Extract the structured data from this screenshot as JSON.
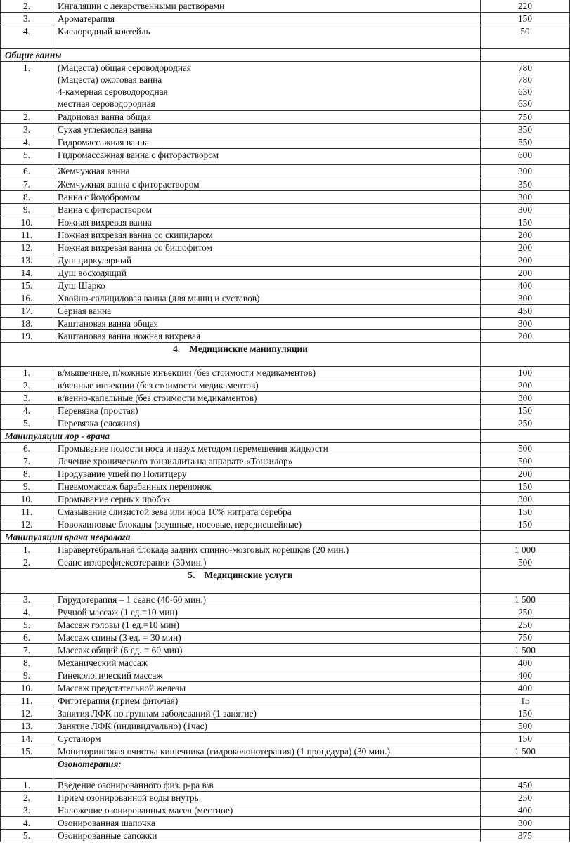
{
  "rows": [
    {
      "type": "item",
      "num": "2.",
      "name": "Ингаляции с лекарственными растворами",
      "price": "220",
      "h": 18
    },
    {
      "type": "item",
      "num": "3.",
      "name": "Ароматерапия",
      "price": "150",
      "h": 18
    },
    {
      "type": "item",
      "num": "4.",
      "name": "Кислородный коктейль",
      "price": "50",
      "h": 34
    },
    {
      "type": "sub",
      "title": "Общие ванны",
      "h": 18
    },
    {
      "type": "multi",
      "num": "1.",
      "lines": [
        {
          "name": "(Мацеста) общая сероводородная",
          "price": "780"
        },
        {
          "name": "(Мацеста) ожоговая ванна",
          "price": "780"
        },
        {
          "name": "4-камерная сероводородная",
          "price": "630"
        },
        {
          "name": "местная сероводородная",
          "price": "630"
        }
      ],
      "h": 70
    },
    {
      "type": "item",
      "num": "2.",
      "name": "Радоновая ванна общая",
      "price": "750",
      "h": 18
    },
    {
      "type": "item",
      "num": "3.",
      "name": "Сухая углекислая ванна",
      "price": "350",
      "h": 18
    },
    {
      "type": "item",
      "num": "4.",
      "name": "Гидромассажная ванна",
      "price": "550",
      "h": 18
    },
    {
      "type": "item",
      "num": "5.",
      "name": "Гидромассажная ванна с фитораствором",
      "price": "600",
      "h": 23
    },
    {
      "type": "item",
      "num": "6.",
      "name": "Жемчужная ванна",
      "price": "300",
      "h": 19
    },
    {
      "type": "item",
      "num": "7.",
      "name": "Жемчужная ванна с фитораствором",
      "price": "350",
      "h": 18
    },
    {
      "type": "item",
      "num": "8.",
      "name": "Ванна с йодобромом",
      "price": "300",
      "h": 18
    },
    {
      "type": "item",
      "num": "9.",
      "name": "Ванна с фитораствором",
      "price": "300",
      "h": 18
    },
    {
      "type": "item",
      "num": "10.",
      "name": "Ножная вихревая ванна",
      "price": "150",
      "h": 18
    },
    {
      "type": "item",
      "num": "11.",
      "name": "Ножная вихревая ванна со скипидаром",
      "price": "200",
      "h": 18
    },
    {
      "type": "item",
      "num": "12.",
      "name": "Ножная вихревая ванна со бишофитом",
      "price": "200",
      "h": 18
    },
    {
      "type": "item",
      "num": "13.",
      "name": "Душ циркулярный",
      "price": "200",
      "h": 18
    },
    {
      "type": "item",
      "num": "14.",
      "name": "Душ восходящий",
      "price": "200",
      "h": 18
    },
    {
      "type": "item",
      "num": "15.",
      "name": "Душ Шарко",
      "price": "400",
      "h": 18
    },
    {
      "type": "item",
      "num": "16.",
      "name": "Хвойно-салициловая ванна (для мышц и суставов)",
      "price": "300",
      "h": 18
    },
    {
      "type": "item",
      "num": "17.",
      "name": "Серная ванна",
      "price": "450",
      "h": 18
    },
    {
      "type": "item",
      "num": "18.",
      "name": "Каштановая ванна общая",
      "price": "300",
      "h": 18
    },
    {
      "type": "item",
      "num": "19.",
      "name": "Каштановая ванна ножная вихревая",
      "price": "200",
      "h": 18
    },
    {
      "type": "sec",
      "title": "4.    Медицинские манипуляции",
      "h": 34
    },
    {
      "type": "item",
      "num": "1.",
      "name": "в/мышечные, п/кожные инъекции (без стоимости медикаментов)",
      "price": "100",
      "h": 18
    },
    {
      "type": "item",
      "num": "2.",
      "name": "в/венные инъекции (без стоимости медикаментов)",
      "price": "200",
      "h": 18
    },
    {
      "type": "item",
      "num": "3.",
      "name": "в/венно-капельные (без стоимости медикаментов)",
      "price": "300",
      "h": 18
    },
    {
      "type": "item",
      "num": "4.",
      "name": "Перевязка (простая)",
      "price": "150",
      "h": 18
    },
    {
      "type": "item",
      "num": "5.",
      "name": "Перевязка (сложная)",
      "price": "250",
      "h": 18
    },
    {
      "type": "sub",
      "title": "Манипуляции лор - врача",
      "h": 18
    },
    {
      "type": "item",
      "num": "6.",
      "name": "Промывание полости носа и пазух методом перемещения жидкости",
      "price": "500",
      "h": 18
    },
    {
      "type": "item",
      "num": "7.",
      "name": "Лечение хронического тонзиллита на аппарате «Тонзилор»",
      "price": "500",
      "h": 18
    },
    {
      "type": "item",
      "num": "8.",
      "name": "Продувание ушей по Политцеру",
      "price": "200",
      "h": 18
    },
    {
      "type": "item",
      "num": "9.",
      "name": "Пневмомассаж барабанных перепонок",
      "price": "150",
      "h": 18
    },
    {
      "type": "item",
      "num": "10.",
      "name": "Промывание серных пробок",
      "price": "300",
      "h": 18
    },
    {
      "type": "item",
      "num": "11.",
      "name": "Смазывание слизистой зева или носа 10% нитрата серебра",
      "price": "150",
      "h": 18
    },
    {
      "type": "item",
      "num": "12.",
      "name": "Новокаиновые блокады (заушные, носовые, переднешейные)",
      "price": "150",
      "h": 18
    },
    {
      "type": "sub",
      "title": "Манипуляции врача невролога",
      "h": 18
    },
    {
      "type": "item",
      "num": "1.",
      "name": "Паравертебральная блокада задних спинно-мозговых корешков (20 мин.)",
      "price": "1 000",
      "h": 18
    },
    {
      "type": "item",
      "num": "2.",
      "name": "Сеанс иглорефлексотерапии (30мин.)",
      "price": "500",
      "h": 18
    },
    {
      "type": "sec",
      "title": "5.    Медицинские услуги",
      "h": 35
    },
    {
      "type": "item",
      "num": "3.",
      "name": "Гирудотерапия – 1 сеанс (40-60 мин.)",
      "price": "1 500",
      "h": 18
    },
    {
      "type": "item",
      "num": "4.",
      "name": "Ручной массаж (1 ед.=10 мин)",
      "price": "250",
      "h": 18
    },
    {
      "type": "item",
      "num": "5.",
      "name": "Массаж головы (1 ед.=10 мин)",
      "price": "250",
      "h": 18
    },
    {
      "type": "item",
      "num": "6.",
      "name": "Массаж спины (3 ед. = 30 мин)",
      "price": "750",
      "h": 18
    },
    {
      "type": "item",
      "num": "7.",
      "name": "Массаж общий (6 ед. = 60 мин)",
      "price": "1 500",
      "h": 18
    },
    {
      "type": "item",
      "num": "8.",
      "name": "Механический массаж",
      "price": "400",
      "h": 18
    },
    {
      "type": "item",
      "num": "9.",
      "name": "Гинекологический массаж",
      "price": "400",
      "h": 18
    },
    {
      "type": "item",
      "num": "10.",
      "name": "Массаж предстательной железы",
      "price": "400",
      "h": 18
    },
    {
      "type": "item",
      "num": "11.",
      "name": "Фитотерапия (прием фиточая)",
      "price": "15",
      "h": 18
    },
    {
      "type": "item",
      "num": "12.",
      "name": "Занятия ЛФК по группам заболеваний (1 занятие)",
      "price": "150",
      "h": 18
    },
    {
      "type": "item",
      "num": "13.",
      "name": "Занятие ЛФК (индивидуально) (1час)",
      "price": "500",
      "h": 18
    },
    {
      "type": "item",
      "num": "14.",
      "name": "Сустанорм",
      "price": "150",
      "h": 18
    },
    {
      "type": "item",
      "num": "15.",
      "name": "Мониторинговая очистка кишечника (гидроколонотерапия) (1 процедура) (30 мин.)",
      "price": "1 500",
      "h": 18
    },
    {
      "type": "ozo",
      "title": "Озонотерапия:",
      "h": 30
    },
    {
      "type": "item",
      "num": "1.",
      "name": "Введение озонированного физ. р-ра  в\\в",
      "price": "450",
      "h": 18
    },
    {
      "type": "item",
      "num": "2.",
      "name": "Прием озонированной воды внутрь",
      "price": "250",
      "h": 18
    },
    {
      "type": "item",
      "num": "3.",
      "name": "Наложение озонированных масел  (местное)",
      "price": "400",
      "h": 18
    },
    {
      "type": "item",
      "num": "4.",
      "name": "Озонированная шапочка",
      "price": "300",
      "h": 18
    },
    {
      "type": "item",
      "num": "5.",
      "name": "Озонированные сапожки",
      "price": "375",
      "h": 18
    }
  ]
}
